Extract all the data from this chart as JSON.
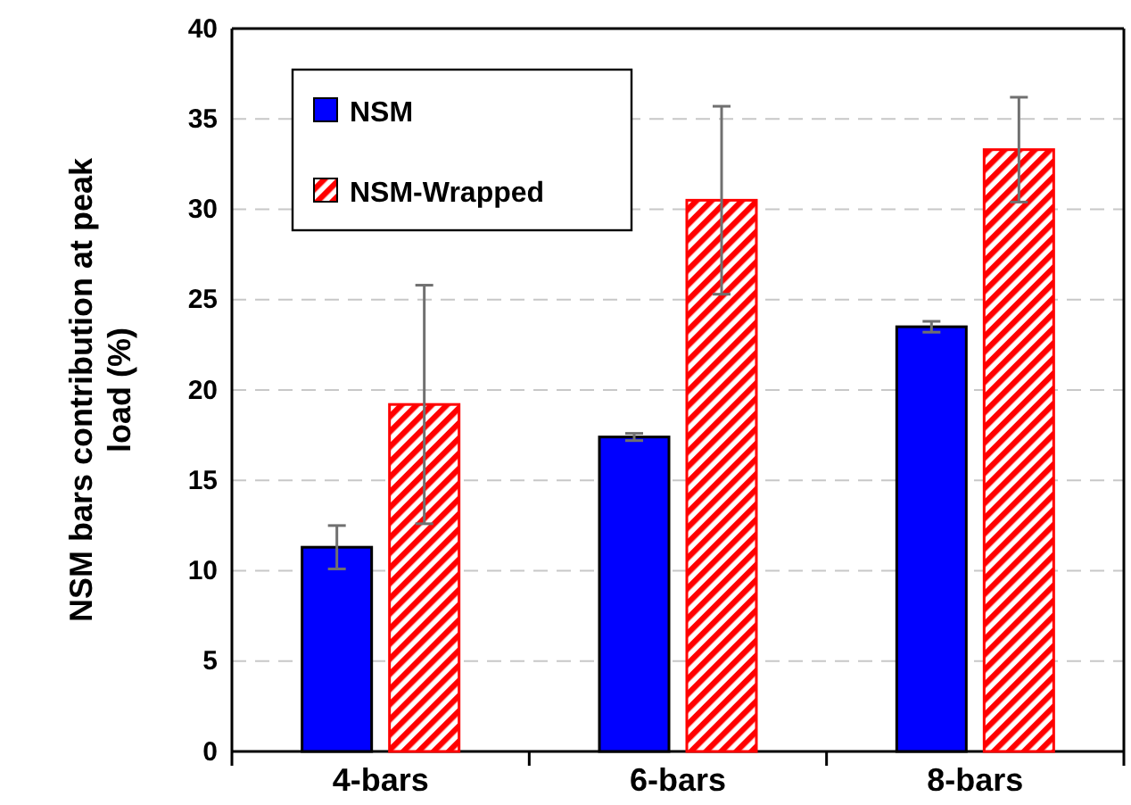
{
  "chart_data": {
    "type": "bar",
    "ylabel": "NSM bars contribution at peak load (%)",
    "categories": [
      "4-bars",
      "6-bars",
      "8-bars"
    ],
    "series": [
      {
        "name": "NSM",
        "color": "#0000ff",
        "values": [
          11.3,
          17.4,
          23.5
        ],
        "errors": [
          1.2,
          0.2,
          0.3
        ]
      },
      {
        "name": "NSM-Wrapped",
        "color": "#ff0000",
        "values": [
          19.2,
          30.5,
          33.3
        ],
        "errors": [
          6.6,
          5.2,
          2.9
        ]
      }
    ],
    "ylim": [
      0,
      40
    ],
    "yticks": [
      0,
      5,
      10,
      15,
      20,
      25,
      30,
      35,
      40
    ],
    "grid": "y",
    "legend": "top left"
  }
}
